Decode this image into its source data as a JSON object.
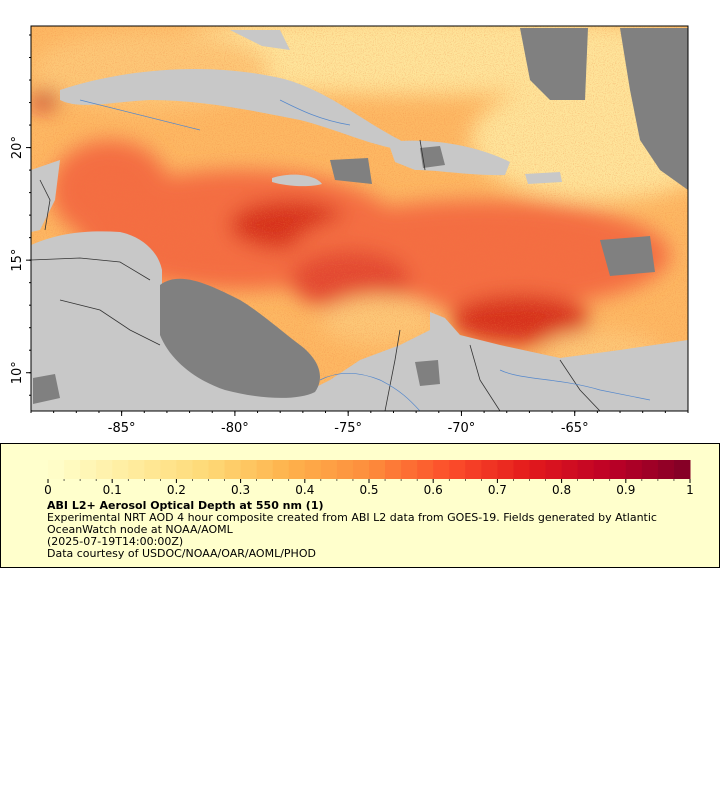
{
  "map": {
    "colors": {
      "land": "#c8c8c8",
      "nodata": "#808080",
      "border": "#333333",
      "rivers": "#5588cc",
      "frame": "#000000"
    },
    "lon_range": [
      -89,
      -60
    ],
    "lat_range": [
      8.3,
      25.4
    ],
    "x_ticks": [
      {
        "value": -85,
        "label": "-85°"
      },
      {
        "value": -80,
        "label": "-80°"
      },
      {
        "value": -75,
        "label": "-75°"
      },
      {
        "value": -70,
        "label": "-70°"
      },
      {
        "value": -65,
        "label": "-65°"
      }
    ],
    "y_ticks": [
      {
        "value": 10,
        "label": "10°"
      },
      {
        "value": 15,
        "label": "15°"
      },
      {
        "value": 20,
        "label": "20°"
      }
    ]
  },
  "colorbar": {
    "min": 0,
    "max": 1,
    "colors": [
      "#ffffcc",
      "#ffeda0",
      "#fed976",
      "#feb24c",
      "#fd8d3c",
      "#fc4e2a",
      "#e31a1c",
      "#bd0026",
      "#800026"
    ],
    "ticks": [
      {
        "value": 0,
        "label": "0"
      },
      {
        "value": 0.1,
        "label": "0.1"
      },
      {
        "value": 0.2,
        "label": "0.2"
      },
      {
        "value": 0.3,
        "label": "0.3"
      },
      {
        "value": 0.4,
        "label": "0.4"
      },
      {
        "value": 0.5,
        "label": "0.5"
      },
      {
        "value": 0.6,
        "label": "0.6"
      },
      {
        "value": 0.7,
        "label": "0.7"
      },
      {
        "value": 0.8,
        "label": "0.8"
      },
      {
        "value": 0.9,
        "label": "0.9"
      },
      {
        "value": 1,
        "label": "1"
      }
    ]
  },
  "legend": {
    "title": "ABI L2+ Aerosol Optical Depth at 550 nm (1)",
    "description": "Experimental NRT AOD 4 hour composite created from ABI L2 data from GOES-19. Fields generated by Atlantic OceanWatch node at NOAA/AOML",
    "time": "(2025-07-19T14:00:00Z)",
    "credit": "Data courtesy of USDOC/NOAA/OAR/AOML/PHOD"
  }
}
